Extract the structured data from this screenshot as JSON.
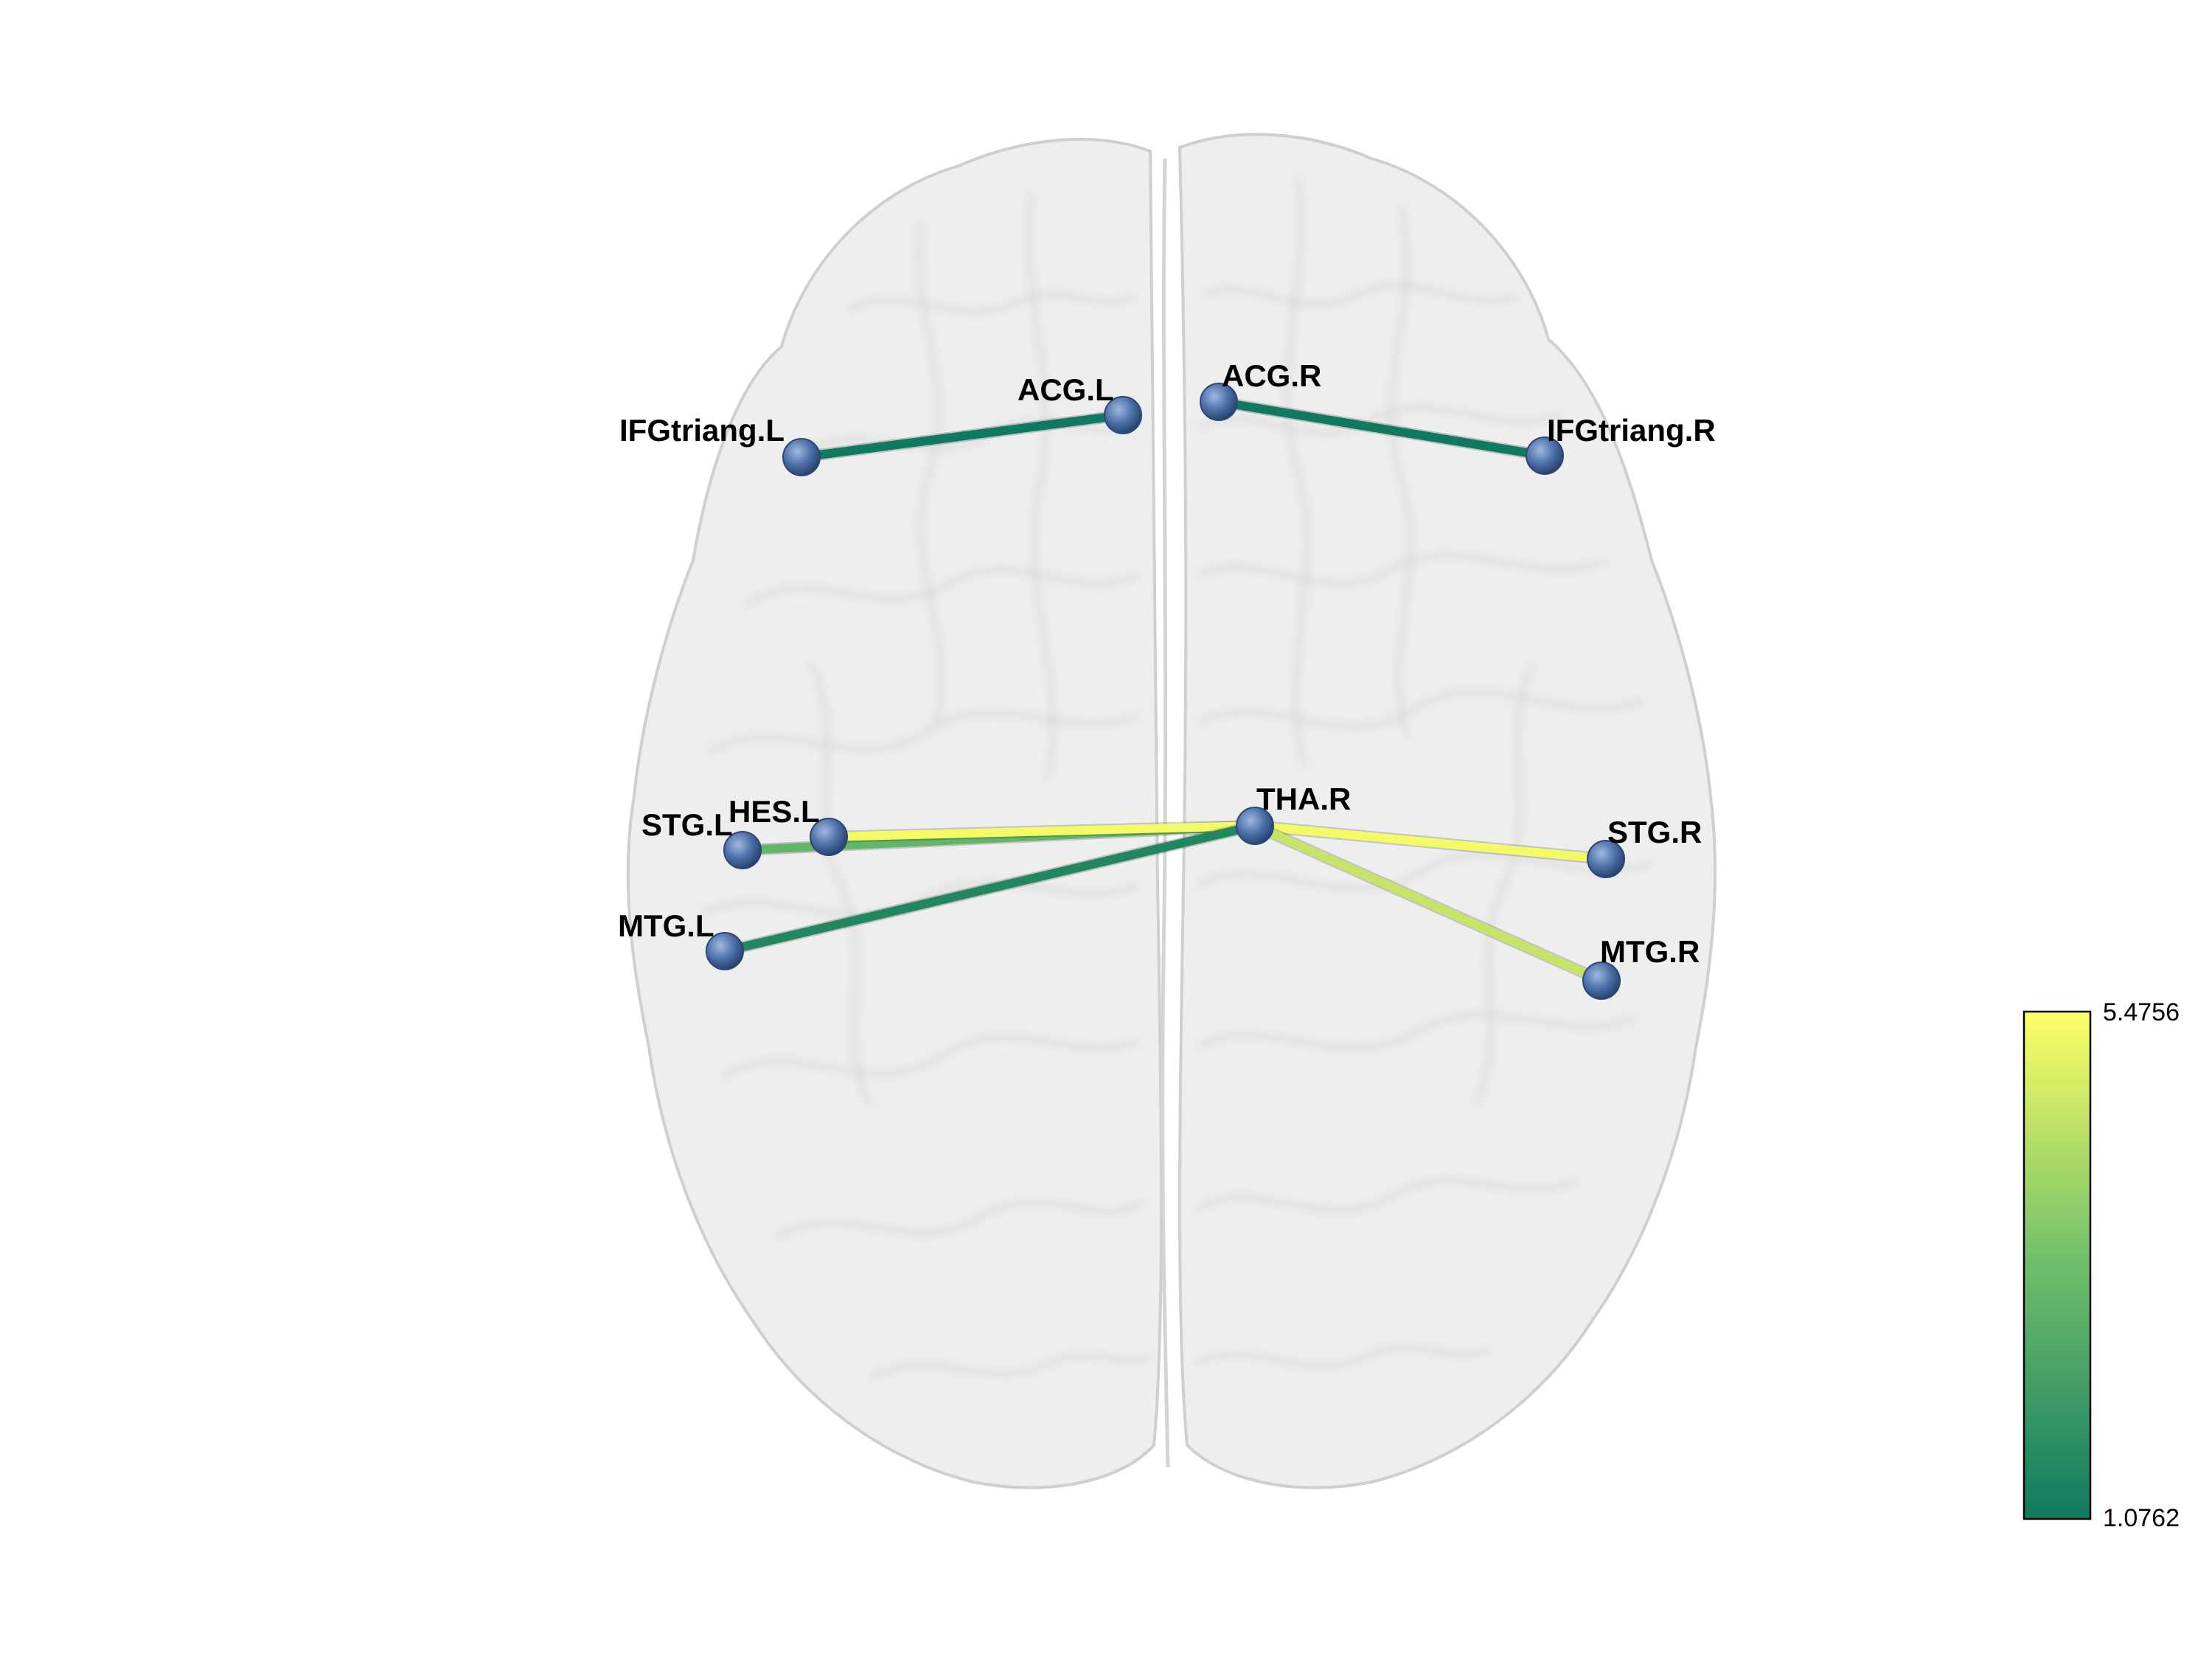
{
  "nodes": [
    {
      "id": "IFGtriang.L",
      "label": "IFGtriang.L"
    },
    {
      "id": "ACG.L",
      "label": "ACG.L"
    },
    {
      "id": "ACG.R",
      "label": "ACG.R"
    },
    {
      "id": "IFGtriang.R",
      "label": "IFGtriang.R"
    },
    {
      "id": "STG.L",
      "label": "STG.L"
    },
    {
      "id": "HES.L",
      "label": "HES.L"
    },
    {
      "id": "THA.R",
      "label": "THA.R"
    },
    {
      "id": "STG.R",
      "label": "STG.R"
    },
    {
      "id": "MTG.L",
      "label": "MTG.L"
    },
    {
      "id": "MTG.R",
      "label": "MTG.R"
    }
  ],
  "edges": [
    {
      "source": "IFGtriang.L",
      "target": "ACG.L",
      "weight": 1.08
    },
    {
      "source": "ACG.R",
      "target": "IFGtriang.R",
      "weight": 1.08
    },
    {
      "source": "STG.L",
      "target": "THA.R",
      "weight": 3.0
    },
    {
      "source": "HES.L",
      "target": "THA.R",
      "weight": 5.3
    },
    {
      "source": "MTG.L",
      "target": "THA.R",
      "weight": 1.5
    },
    {
      "source": "THA.R",
      "target": "STG.R",
      "weight": 5.3
    },
    {
      "source": "THA.R",
      "target": "MTG.R",
      "weight": 4.6
    }
  ],
  "colorbar": {
    "max_label": "5.4756",
    "min_label": "1.0762",
    "max": 5.4756,
    "min": 1.0762,
    "color_low": "#0f7a5f",
    "color_mid": "#6fbe6a",
    "color_high": "#ffff66"
  },
  "colors": {
    "node": "#4a6ea8",
    "brain": "#d9d9d9",
    "background": "#ffffff"
  }
}
